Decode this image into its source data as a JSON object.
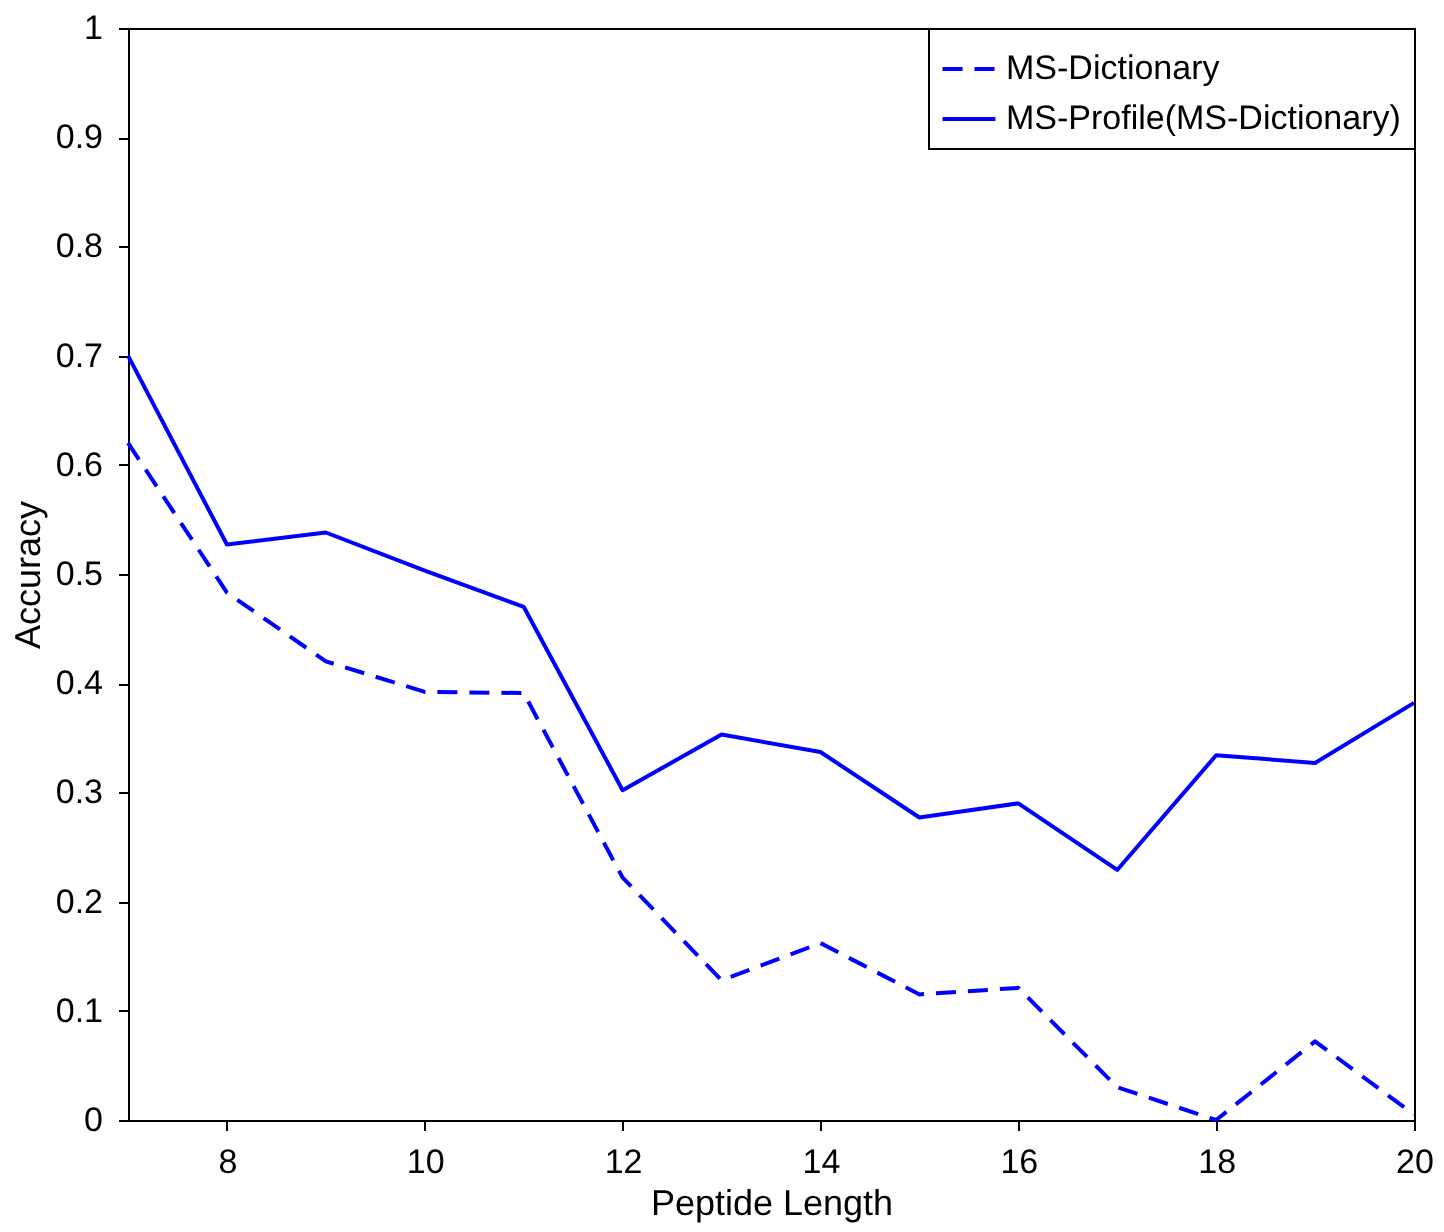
{
  "chart_data": {
    "type": "line",
    "xlabel": "Peptide Length",
    "ylabel": "Accuracy",
    "x": [
      7,
      8,
      9,
      10,
      11,
      12,
      13,
      14,
      15,
      16,
      17,
      18,
      19,
      20
    ],
    "series": [
      {
        "name": "MS-Dictionary",
        "color": "#0000ff",
        "line_style": "dashed",
        "values": [
          0.62,
          0.483,
          0.42,
          0.392,
          0.391,
          0.222,
          0.128,
          0.162,
          0.115,
          0.121,
          0.03,
          0.0,
          0.072,
          0.005
        ]
      },
      {
        "name": "MS-Profile(MS-Dictionary)",
        "color": "#0000ff",
        "line_style": "solid",
        "values": [
          0.7,
          0.527,
          0.538,
          0.503,
          0.47,
          0.302,
          0.353,
          0.337,
          0.277,
          0.29,
          0.229,
          0.334,
          0.327,
          0.382
        ]
      }
    ],
    "xlim": [
      7,
      20
    ],
    "xticks": [
      8,
      10,
      12,
      14,
      16,
      18,
      20
    ],
    "ylim": [
      0,
      1
    ],
    "yticks": [
      0,
      0.1,
      0.2,
      0.3,
      0.4,
      0.5,
      0.6,
      0.7,
      0.8,
      0.9,
      1
    ],
    "grid": false,
    "legend": "top right",
    "marker": "none"
  }
}
